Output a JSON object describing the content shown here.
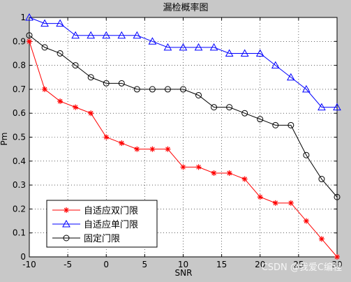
{
  "chart_data": {
    "type": "line",
    "title": "漏检概率图",
    "xlabel": "SNR",
    "ylabel": "Pm",
    "xlim": [
      -10,
      30
    ],
    "ylim": [
      0,
      1
    ],
    "xticks": [
      -10,
      -5,
      0,
      5,
      10,
      15,
      20,
      25,
      30
    ],
    "yticks": [
      0,
      0.1,
      0.2,
      0.3,
      0.4,
      0.5,
      0.6,
      0.7,
      0.8,
      0.9,
      1
    ],
    "xtick_labels": [
      "-10",
      "-5",
      "0",
      "5",
      "10",
      "15",
      "20",
      "25",
      "30"
    ],
    "ytick_labels": [
      "0",
      "0.1",
      "0.2",
      "0.3",
      "0.4",
      "0.5",
      "0.6",
      "0.7",
      "0.8",
      "0.9",
      "1"
    ],
    "grid": true,
    "legend_position": "bottom-left",
    "x": [
      -10,
      -8,
      -6,
      -4,
      -2,
      0,
      2,
      4,
      6,
      8,
      10,
      12,
      14,
      16,
      18,
      20,
      22,
      24,
      26,
      28,
      30
    ],
    "series": [
      {
        "name": "自适应双门限",
        "color": "#ff0000",
        "marker": "star",
        "values": [
          0.9,
          0.7,
          0.65,
          0.625,
          0.6,
          0.5,
          0.475,
          0.45,
          0.45,
          0.45,
          0.375,
          0.375,
          0.35,
          0.35,
          0.325,
          0.25,
          0.225,
          0.225,
          0.15,
          0.075,
          0.0
        ]
      },
      {
        "name": "自适应单门限",
        "color": "#0000ff",
        "marker": "triangle",
        "values": [
          1.0,
          0.975,
          0.975,
          0.925,
          0.925,
          0.925,
          0.925,
          0.925,
          0.9,
          0.875,
          0.875,
          0.875,
          0.875,
          0.85,
          0.85,
          0.85,
          0.8,
          0.75,
          0.7,
          0.625,
          0.625
        ]
      },
      {
        "name": "固定门限",
        "color": "#000000",
        "marker": "circle",
        "values": [
          0.925,
          0.875,
          0.85,
          0.8,
          0.75,
          0.725,
          0.725,
          0.7,
          0.7,
          0.7,
          0.7,
          0.675,
          0.625,
          0.625,
          0.6,
          0.575,
          0.55,
          0.55,
          0.425,
          0.325,
          0.25
        ]
      }
    ]
  },
  "watermark": "CSDN @我爱C编程"
}
